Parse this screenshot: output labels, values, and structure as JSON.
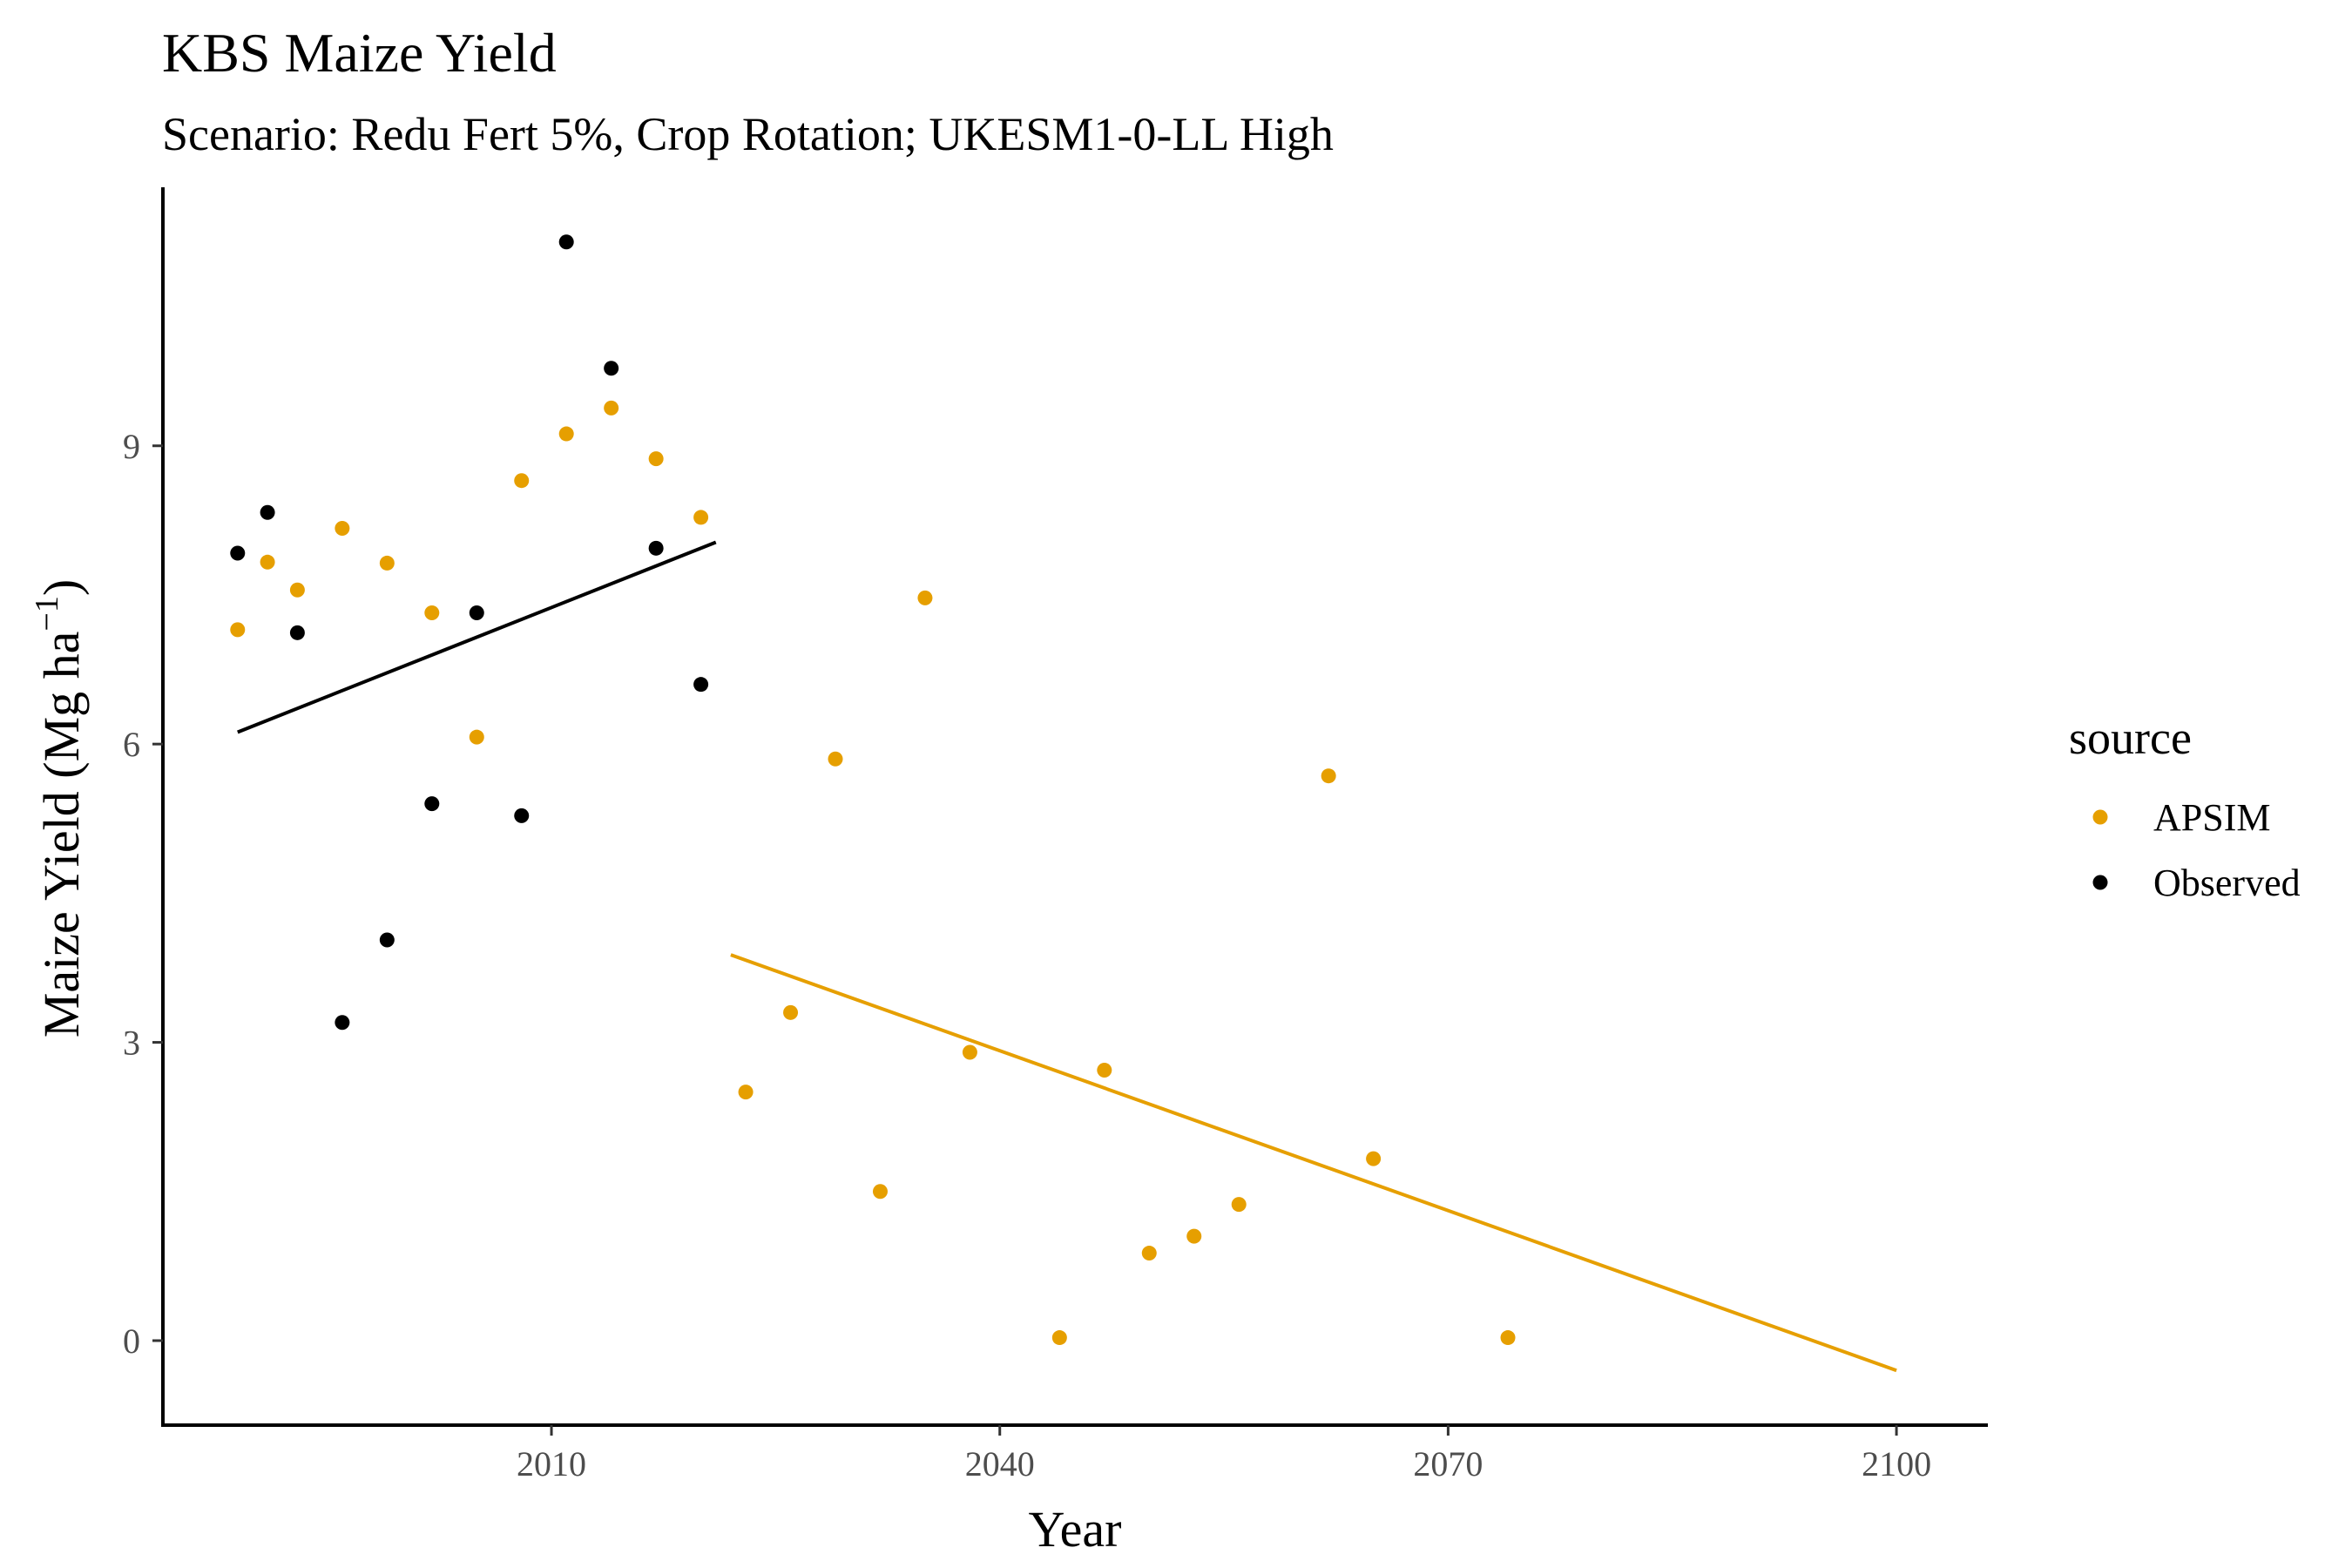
{
  "chart_data": {
    "type": "scatter",
    "title": "KBS Maize Yield",
    "subtitle": "Scenario: Redu Fert 5%, Crop Rotation; UKESM1-0-LL High",
    "xlabel": "Year",
    "ylabel": "Maize Yield (Mg ha",
    "ylabel_sup": "−1",
    "ylabel_close": ")",
    "xlim": [
      1984,
      2106
    ],
    "ylim": [
      -0.85,
      11.6
    ],
    "xticks": [
      2010,
      2040,
      2070,
      2100
    ],
    "yticks": [
      0,
      3,
      6,
      9
    ],
    "grid": false,
    "legend": {
      "title": "source",
      "position": "right"
    },
    "series": [
      {
        "name": "APSIM",
        "color": "#E69F00",
        "points": [
          [
            1989,
            7.15
          ],
          [
            1991,
            7.83
          ],
          [
            1993,
            7.55
          ],
          [
            1996,
            8.17
          ],
          [
            1999,
            7.82
          ],
          [
            2002,
            7.32
          ],
          [
            2005,
            6.07
          ],
          [
            2008,
            8.65
          ],
          [
            2011,
            9.12
          ],
          [
            2014,
            9.38
          ],
          [
            2017,
            8.87
          ],
          [
            2020,
            8.28
          ],
          [
            2023,
            2.5
          ],
          [
            2026,
            3.3
          ],
          [
            2029,
            5.85
          ],
          [
            2032,
            1.5
          ],
          [
            2035,
            7.47
          ],
          [
            2038,
            2.9
          ],
          [
            2044,
            0.03
          ],
          [
            2047,
            2.72
          ],
          [
            2050,
            0.88
          ],
          [
            2053,
            1.05
          ],
          [
            2056,
            1.37
          ],
          [
            2062,
            5.68
          ],
          [
            2065,
            1.83
          ],
          [
            2074,
            0.03
          ]
        ],
        "trend": [
          [
            2022,
            3.88
          ],
          [
            2100,
            -0.3
          ]
        ]
      },
      {
        "name": "Observed",
        "color": "#000000",
        "points": [
          [
            1989,
            7.92
          ],
          [
            1991,
            8.33
          ],
          [
            1993,
            7.12
          ],
          [
            1996,
            3.2
          ],
          [
            1999,
            4.03
          ],
          [
            2002,
            5.4
          ],
          [
            2005,
            7.32
          ],
          [
            2008,
            5.28
          ],
          [
            2011,
            11.05
          ],
          [
            2014,
            9.78
          ],
          [
            2017,
            7.97
          ],
          [
            2020,
            6.6
          ]
        ],
        "trend": [
          [
            1989,
            6.12
          ],
          [
            2021,
            8.03
          ]
        ]
      }
    ]
  }
}
